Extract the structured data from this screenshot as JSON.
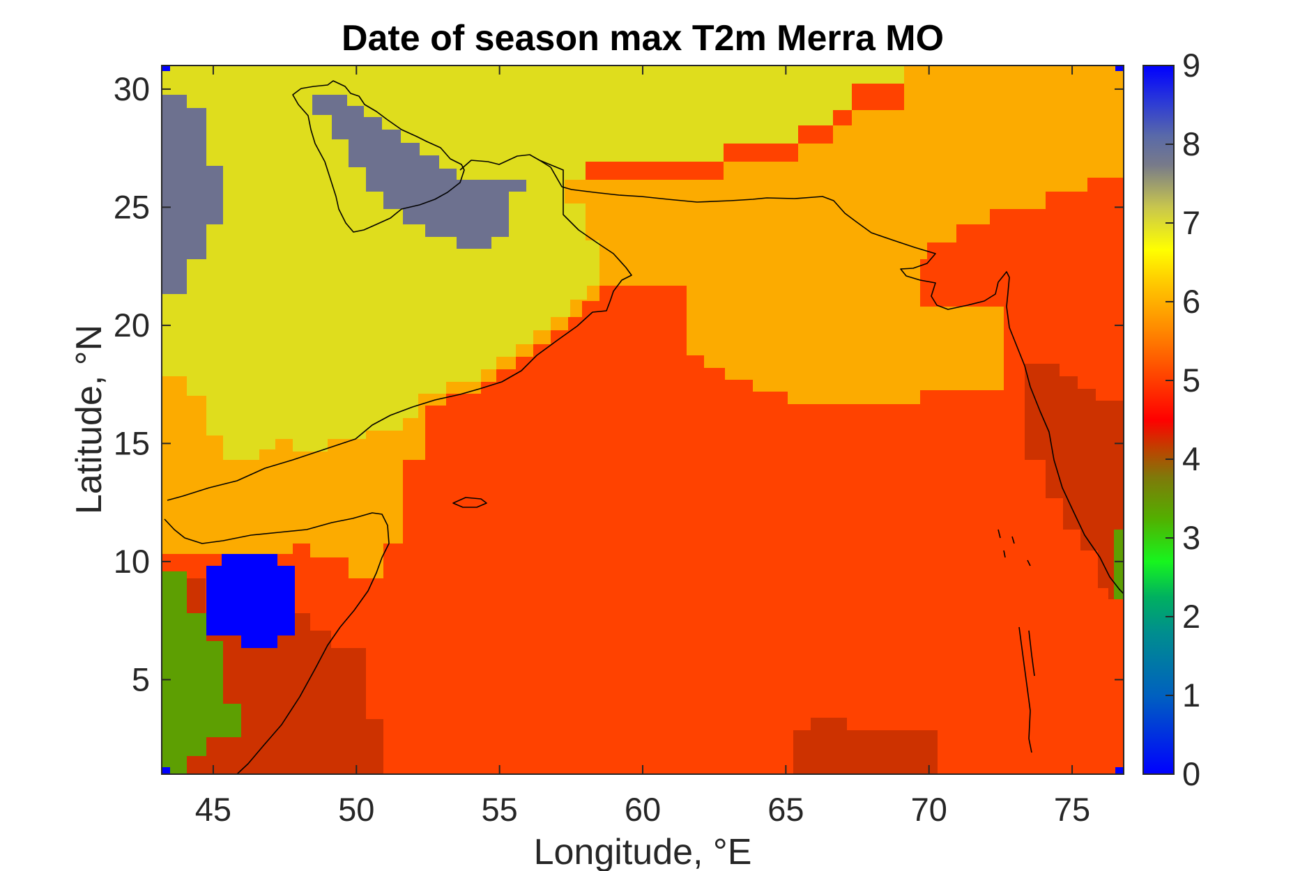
{
  "chart_data": {
    "type": "heatmap",
    "title": "Date of season max T2m Merra MO",
    "xlabel": "Longitude, °E",
    "ylabel": "Latitude, °N",
    "xlim": [
      43.2,
      76.8
    ],
    "ylim": [
      1,
      31
    ],
    "xticks": [
      45,
      50,
      55,
      60,
      65,
      70,
      75
    ],
    "yticks": [
      5,
      10,
      15,
      20,
      25,
      30
    ],
    "colorbar": {
      "min": 0,
      "max": 9,
      "ticks": [
        "0",
        "1",
        "2",
        "3",
        "4",
        "5",
        "6",
        "7",
        "8",
        "9"
      ],
      "colormap": "jet-like (blue - green - yellow - orange - red - gray - blue)"
    },
    "value_colors": {
      "9": "#0000ff",
      "8": "#6d718f",
      "7": "#dfdd1d",
      "6": "#fcab00",
      "5": "#ff4200",
      "4": "#cd3200",
      "3": "#5d9f02"
    },
    "regions": [
      {
        "value": 7,
        "description": "Arabian Peninsula interior and Iran / Pakistan north"
      },
      {
        "value": 8,
        "description": "Persian Gulf and northwest Arabia"
      },
      {
        "value": 6,
        "description": "Gulf of Aden coast, Pakistan and central India"
      },
      {
        "value": 5,
        "description": "Arabian Sea"
      },
      {
        "value": 4,
        "description": "Somalia coast, southwest India coast, southern Arabian Sea patch"
      },
      {
        "value": 3,
        "description": "Ethiopia / Somalia interior, southwest India tip"
      },
      {
        "value": 9,
        "description": "Ethiopian highlands patch"
      }
    ]
  }
}
